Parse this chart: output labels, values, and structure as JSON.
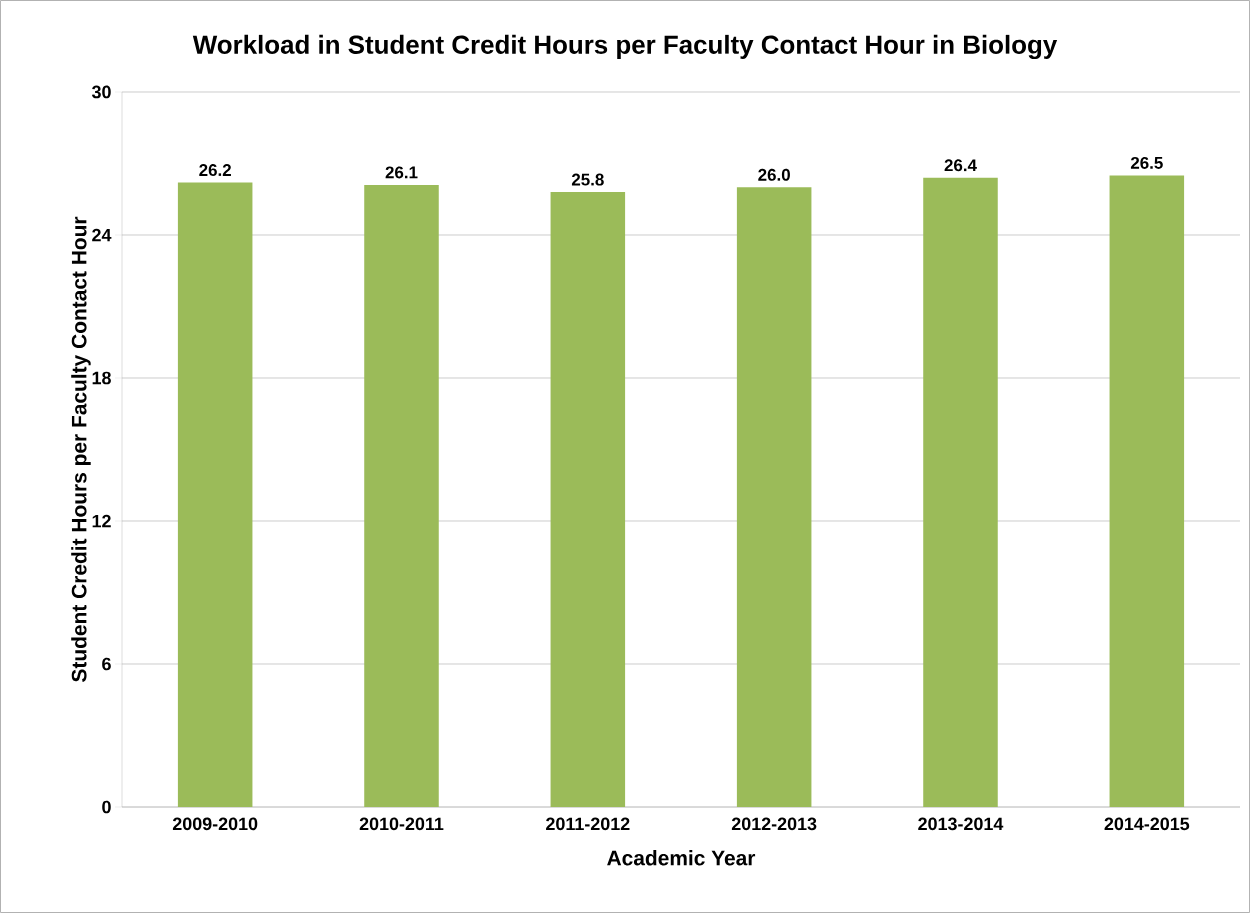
{
  "chart_data": {
    "type": "bar",
    "title": "Workload in Student Credit Hours per Faculty Contact Hour in Biology",
    "xlabel": "Academic Year",
    "ylabel": "Student Credit Hours per Faculty Contact Hour",
    "categories": [
      "2009-2010",
      "2010-2011",
      "2011-2012",
      "2012-2013",
      "2013-2014",
      "2014-2015"
    ],
    "values": [
      26.2,
      26.1,
      25.8,
      26.0,
      26.4,
      26.5
    ],
    "value_labels": [
      "26.2",
      "26.1",
      "25.8",
      "26.0",
      "26.4",
      "26.5"
    ],
    "color": "#9bbb59",
    "ylim": [
      0,
      30
    ],
    "yticks": [
      0,
      6,
      12,
      18,
      24,
      30
    ],
    "grid": "y"
  }
}
